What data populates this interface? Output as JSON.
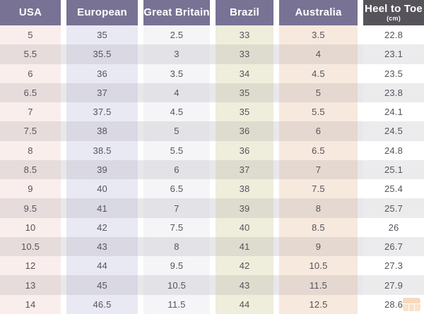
{
  "chart_data": {
    "type": "table",
    "columns": [
      {
        "label": "USA",
        "header_bg": "#787294",
        "header_text": "#ffffff",
        "body_bg": "#f9eeec"
      },
      {
        "label": "European",
        "header_bg": "#787294",
        "header_text": "#ffffff",
        "body_bg": "#e9e9f4"
      },
      {
        "label": "Great Britain",
        "header_bg": "#787294",
        "header_text": "#ffffff",
        "body_bg": "#f5f5f8"
      },
      {
        "label": "Brazil",
        "header_bg": "#787294",
        "header_text": "#ffffff",
        "body_bg": "#efeedc"
      },
      {
        "label": "Australia",
        "header_bg": "#787294",
        "header_text": "#ffffff",
        "body_bg": "#f7e9de"
      },
      {
        "label": "Heel to Toe",
        "sublabel": "(cm)",
        "header_bg": "#56535a",
        "header_text": "#ffffff",
        "body_bg": "#ffffff"
      }
    ],
    "rows": [
      [
        "5",
        "35",
        "2.5",
        "33",
        "3.5",
        "22.8"
      ],
      [
        "5.5",
        "35.5",
        "3",
        "33",
        "4",
        "23.1"
      ],
      [
        "6",
        "36",
        "3.5",
        "34",
        "4.5",
        "23.5"
      ],
      [
        "6.5",
        "37",
        "4",
        "35",
        "5",
        "23.8"
      ],
      [
        "7",
        "37.5",
        "4.5",
        "35",
        "5.5",
        "24.1"
      ],
      [
        "7.5",
        "38",
        "5",
        "36",
        "6",
        "24.5"
      ],
      [
        "8",
        "38.5",
        "5.5",
        "36",
        "6.5",
        "24.8"
      ],
      [
        "8.5",
        "39",
        "6",
        "37",
        "7",
        "25.1"
      ],
      [
        "9",
        "40",
        "6.5",
        "38",
        "7.5",
        "25.4"
      ],
      [
        "9.5",
        "41",
        "7",
        "39",
        "8",
        "25.7"
      ],
      [
        "10",
        "42",
        "7.5",
        "40",
        "8.5",
        "26"
      ],
      [
        "10.5",
        "43",
        "8",
        "41",
        "9",
        "26.7"
      ],
      [
        "12",
        "44",
        "9.5",
        "42",
        "10.5",
        "27.3"
      ],
      [
        "13",
        "45",
        "10.5",
        "43",
        "11.5",
        "27.9"
      ],
      [
        "14",
        "46.5",
        "11.5",
        "44",
        "12.5",
        "28.6"
      ]
    ],
    "layout_hints": {
      "header_position": "top",
      "grid": "off",
      "row_striping": "even-rows-shaded",
      "column_gaps": "white vertical gutters between columns"
    }
  },
  "watermark": {
    "name": "storefront-logo",
    "color": "#eea35f"
  }
}
